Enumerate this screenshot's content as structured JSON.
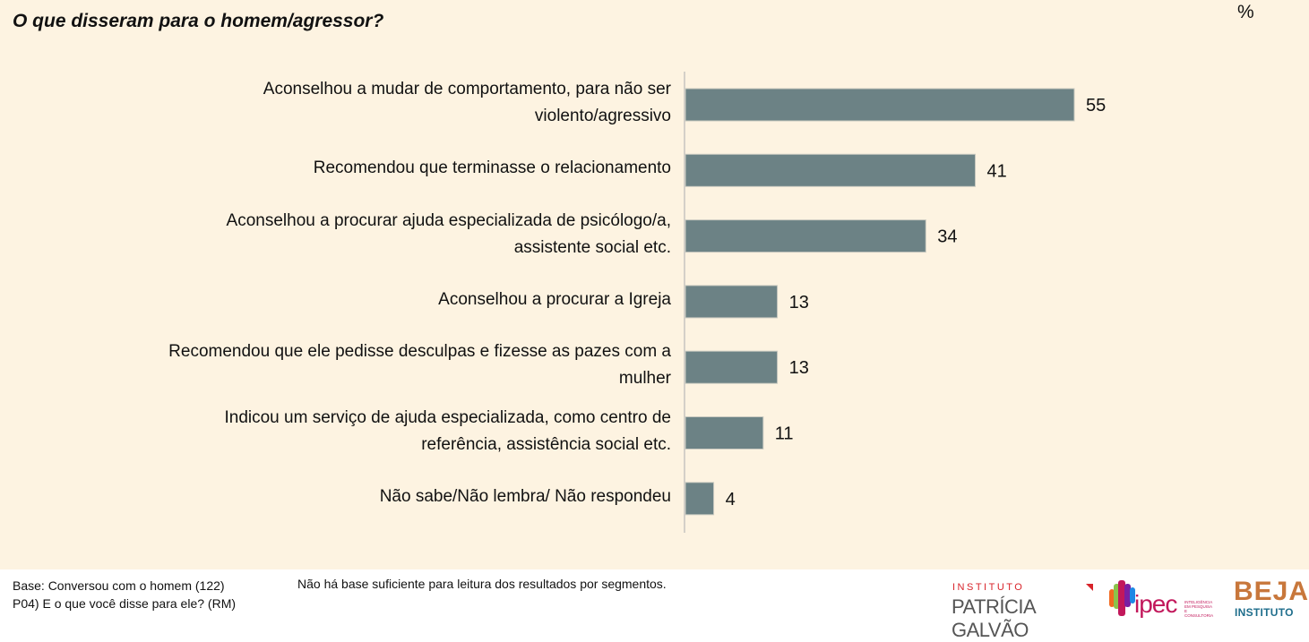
{
  "header": {
    "title": "O que disseram para o homem/agressor?",
    "unit_label": "%"
  },
  "chart_data": {
    "type": "bar",
    "orientation": "horizontal",
    "title": "O que disseram para o homem/agressor?",
    "xlabel": "",
    "ylabel": "",
    "unit": "%",
    "xlim": [
      0,
      60
    ],
    "grid": false,
    "legend": "none",
    "bar_color": "#6c8285",
    "categories": [
      "Aconselhou a mudar de comportamento, para não ser violento/agressivo",
      "Recomendou que terminasse o relacionamento",
      "Aconselhou a procurar ajuda especializada de psicólogo/a, assistente social etc.",
      "Aconselhou a procurar a Igreja",
      "Recomendou que ele pedisse desculpas e fizesse as pazes com a mulher",
      "Indicou um serviço de ajuda especializada, como centro de referência, assistência social etc.",
      "Não sabe/Não lembra/ Não respondeu"
    ],
    "category_lines": [
      [
        "Aconselhou a mudar de comportamento, para não ser",
        "violento/agressivo"
      ],
      [
        "Recomendou que terminasse o relacionamento"
      ],
      [
        "Aconselhou a procurar ajuda especializada de psicólogo/a,",
        "assistente social etc."
      ],
      [
        "Aconselhou a procurar a Igreja"
      ],
      [
        "Recomendou que ele pedisse desculpas e fizesse as pazes com a",
        "mulher"
      ],
      [
        "Indicou um serviço de ajuda especializada, como centro de",
        "referência, assistência social etc."
      ],
      [
        "Não sabe/Não lembra/ Não respondeu"
      ]
    ],
    "values": [
      55,
      41,
      34,
      13,
      13,
      11,
      4
    ],
    "data_labels": [
      "55",
      "41",
      "34",
      "13",
      "13",
      "11",
      "4"
    ]
  },
  "footer": {
    "base": "Base: Conversou com o homem (122)",
    "question": "P04) E o que você disse para ele? (RM)",
    "note": "Não há base suficiente para leitura dos resultados por segmentos."
  },
  "logos": {
    "patricia_galvao": {
      "small": "INSTITUTO",
      "big": "PATRÍCIA GALVÃO"
    },
    "ipec": {
      "name": "ipec",
      "tagline": [
        "INTELIGÊNCIA",
        "EM PESQUISA",
        "E CONSULTORIA"
      ]
    },
    "beja": {
      "big": "BEJA",
      "small": "INSTITUTO"
    }
  }
}
